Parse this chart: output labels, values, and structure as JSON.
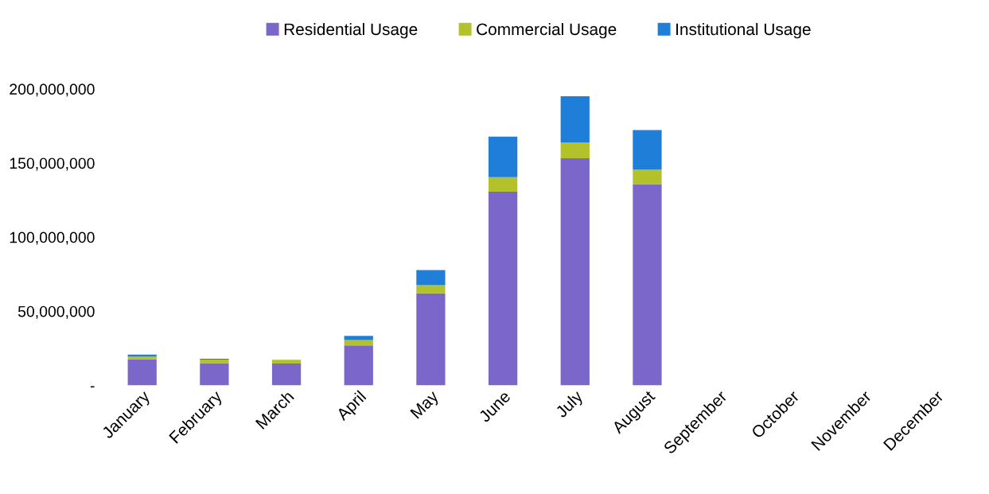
{
  "chart_data": {
    "type": "bar",
    "stacked": true,
    "categories": [
      "January",
      "February",
      "March",
      "April",
      "May",
      "June",
      "July",
      "August",
      "September",
      "October",
      "November",
      "December"
    ],
    "series": [
      {
        "name": "Residential Usage",
        "color": "#7b66c9",
        "values": [
          17500000,
          15000000,
          14700000,
          26900000,
          62000000,
          130600000,
          153200000,
          135800000,
          null,
          null,
          null,
          null
        ]
      },
      {
        "name": "Commercial Usage",
        "color": "#b3c12b",
        "values": [
          1900000,
          2400000,
          2600000,
          3600000,
          5600000,
          9900000,
          10700000,
          9800000,
          null,
          null,
          null,
          null
        ]
      },
      {
        "name": "Institutional Usage",
        "color": "#1f7fd8",
        "values": [
          1400000,
          500000,
          null,
          2800000,
          10100000,
          27300000,
          31200000,
          26700000,
          null,
          null,
          null,
          null
        ]
      }
    ],
    "ylim": [
      0,
      200000000
    ],
    "yticks": [
      {
        "value": 0,
        "label": "-"
      },
      {
        "value": 50000000,
        "label": "50,000,000"
      },
      {
        "value": 100000000,
        "label": "100,000,000"
      },
      {
        "value": 150000000,
        "label": "150,000,000"
      },
      {
        "value": 200000000,
        "label": "200,000,000"
      }
    ],
    "legend": "top"
  }
}
